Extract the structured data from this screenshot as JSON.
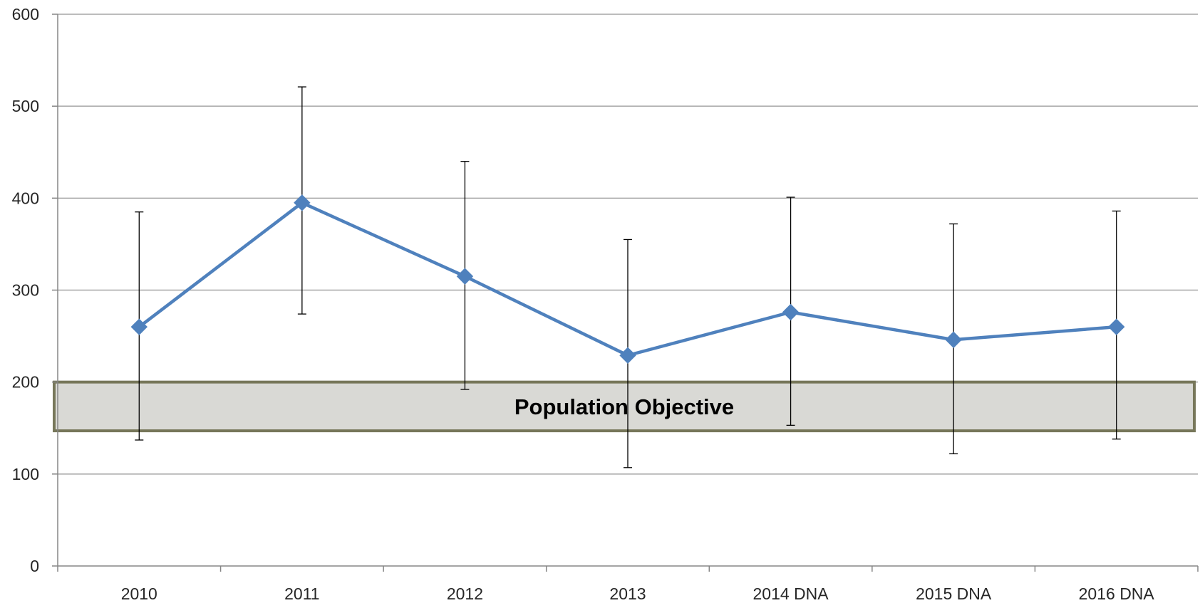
{
  "chart_data": {
    "type": "line",
    "title": "",
    "xlabel": "",
    "ylabel": "",
    "categories": [
      "2010",
      "2011",
      "2012",
      "2013",
      "2014 DNA",
      "2015 DNA",
      "2016 DNA"
    ],
    "series": [
      {
        "values": [
          260,
          395,
          315,
          229,
          276,
          246,
          260
        ],
        "error_low": [
          137,
          274,
          192,
          107,
          153,
          122,
          138
        ],
        "error_high": [
          385,
          521,
          440,
          355,
          401,
          372,
          386
        ],
        "color": "#4F81BD",
        "marker": "diamond"
      }
    ],
    "ylim": [
      0,
      600
    ],
    "yticks": [
      0,
      100,
      200,
      300,
      400,
      500,
      600
    ],
    "grid": true,
    "legend": "none",
    "band": {
      "label": "Population Objective",
      "low": 147,
      "high": 200,
      "fill": "#D9D9D5",
      "stroke": "#77775A"
    },
    "colors": {
      "gridline": "#A6A6A6",
      "axis": "#868686",
      "error_bar": "#000000"
    }
  }
}
